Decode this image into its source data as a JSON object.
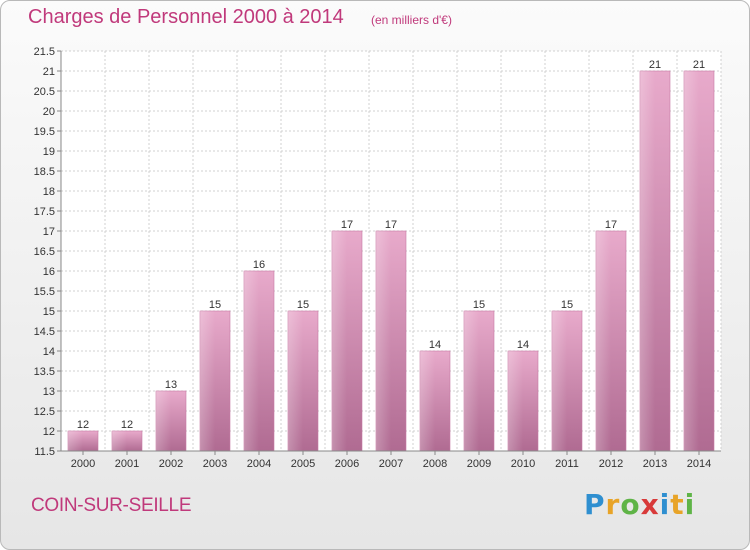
{
  "header": {
    "title": "Charges de Personnel 2000 à 2014",
    "subtitle": "(en milliers d'€)"
  },
  "footer": {
    "commune": "COIN-SUR-SEILLE",
    "logo": [
      "P",
      "r",
      "o",
      "x",
      "i",
      "t",
      "i"
    ],
    "logo_colors": [
      "#2f8fd0",
      "#e8a428",
      "#5fb447",
      "#d83a3a",
      "#2f8fd0",
      "#e8a428",
      "#5fb447"
    ]
  },
  "chart_data": {
    "type": "bar",
    "categories": [
      "2000",
      "2001",
      "2002",
      "2003",
      "2004",
      "2005",
      "2006",
      "2007",
      "2008",
      "2009",
      "2010",
      "2011",
      "2012",
      "2013",
      "2014"
    ],
    "values": [
      12,
      12,
      13,
      15,
      16,
      15,
      17,
      17,
      14,
      15,
      14,
      15,
      17,
      21,
      21
    ],
    "ylim": [
      11.5,
      21.5
    ],
    "yticks": [
      "11.5",
      "12",
      "12.5",
      "13",
      "13.5",
      "14",
      "14.5",
      "15",
      "15.5",
      "16",
      "16.5",
      "17",
      "17.5",
      "18",
      "18.5",
      "19",
      "19.5",
      "20",
      "20.5",
      "21",
      "21.5"
    ],
    "grid": true,
    "bar_color": "#d98fb7"
  }
}
